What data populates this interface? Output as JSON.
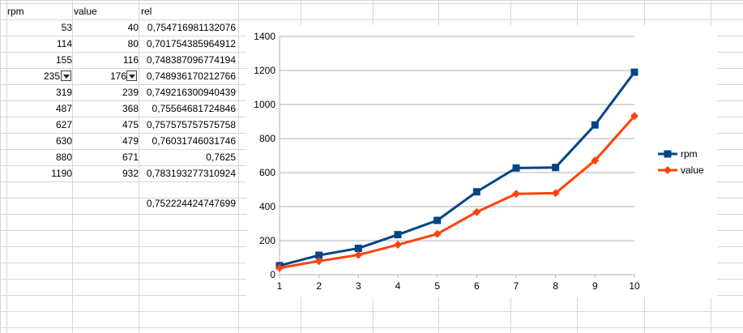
{
  "sheet": {
    "headers": [
      "rpm",
      "value",
      "rel"
    ],
    "rows": [
      {
        "rpm": "53",
        "value": "40",
        "rel": "0,754716981132076"
      },
      {
        "rpm": "114",
        "value": "80",
        "rel": "0,701754385964912"
      },
      {
        "rpm": "155",
        "value": "116",
        "rel": "0,748387096774194"
      },
      {
        "rpm": "235",
        "value": "176",
        "rel": "0,748936170212766"
      },
      {
        "rpm": "319",
        "value": "239",
        "rel": "0,749216300940439"
      },
      {
        "rpm": "487",
        "value": "368",
        "rel": "0,75564681724846"
      },
      {
        "rpm": "627",
        "value": "475",
        "rel": "0,757575757575758"
      },
      {
        "rpm": "630",
        "value": "479",
        "rel": "0,76031746031746"
      },
      {
        "rpm": "880",
        "value": "671",
        "rel": "0,7625"
      },
      {
        "rpm": "1190",
        "value": "932",
        "rel": "0,783193277310924"
      }
    ],
    "average_rel": "0,752224424747699",
    "autofilter_row": 3
  },
  "chart_data": {
    "type": "line",
    "x": [
      1,
      2,
      3,
      4,
      5,
      6,
      7,
      8,
      9,
      10
    ],
    "series": [
      {
        "name": "rpm",
        "values": [
          53,
          114,
          155,
          235,
          319,
          487,
          627,
          630,
          880,
          1190
        ],
        "color": "#004586",
        "marker": "square"
      },
      {
        "name": "value",
        "values": [
          40,
          80,
          116,
          176,
          239,
          368,
          475,
          479,
          671,
          932
        ],
        "color": "#ff420e",
        "marker": "diamond"
      }
    ],
    "ylim": [
      0,
      1400
    ],
    "yticks": [
      "0",
      "200",
      "400",
      "600",
      "800",
      "1000",
      "1200",
      "1400"
    ],
    "xticks": [
      "1",
      "2",
      "3",
      "4",
      "5",
      "6",
      "7",
      "8",
      "9",
      "10"
    ],
    "grid": true,
    "legend": "right"
  }
}
